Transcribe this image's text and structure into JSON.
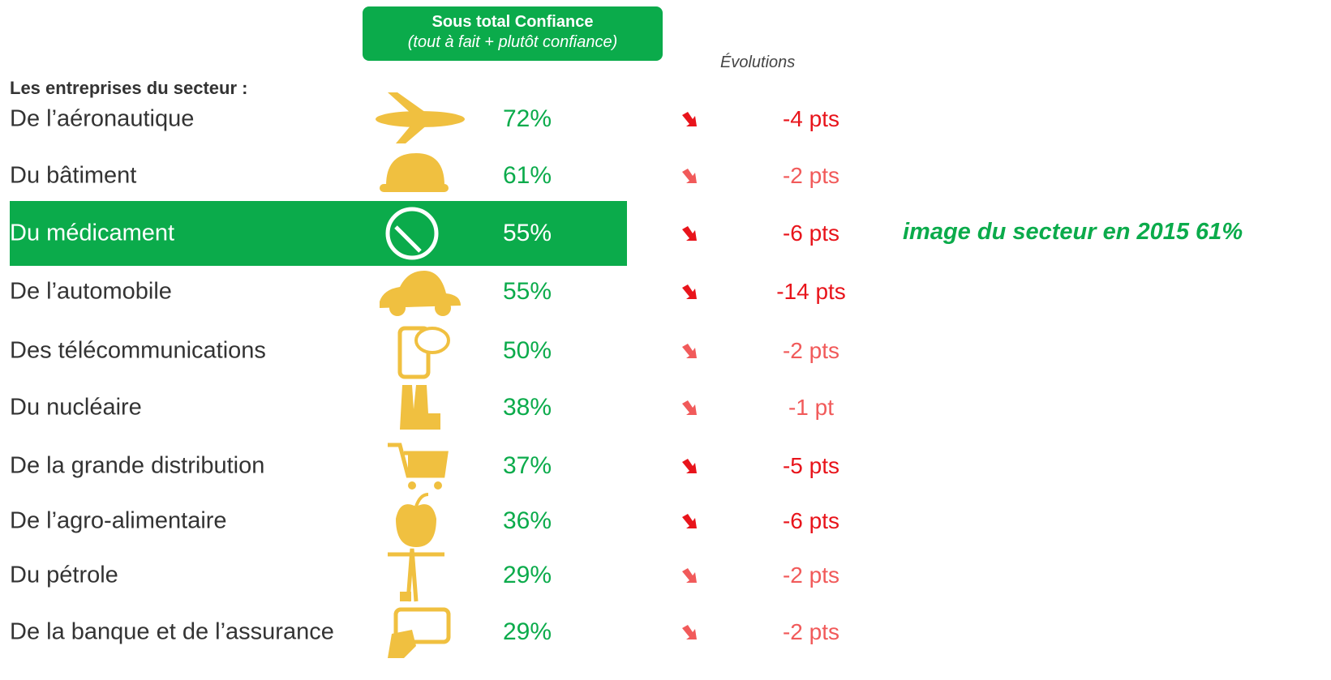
{
  "header": {
    "row_title": "Les entreprises du secteur :",
    "confidence_title": "Sous total Confiance",
    "confidence_subtitle": "(tout à fait + plutôt confiance)",
    "evolution_title": "Évolutions"
  },
  "highlighted_row": 2,
  "annotation": "image du secteur en 2015 61%",
  "rows": [
    {
      "label": "De l’aéronautique",
      "confidence": "72%",
      "evolution": "-4 pts",
      "color": "#e8141b"
    },
    {
      "label": "Du bâtiment",
      "confidence": "61%",
      "evolution": "-2 pts",
      "color": "#f15a5a"
    },
    {
      "label": "Du médicament",
      "confidence": "55%",
      "evolution": "-6 pts",
      "color": "#e8141b"
    },
    {
      "label": "De l’automobile",
      "confidence": "55%",
      "evolution": "-14 pts",
      "color": "#e8141b"
    },
    {
      "label": "Des télécommunications",
      "confidence": "50%",
      "evolution": "-2 pts",
      "color": "#f15a5a"
    },
    {
      "label": "Du nucléaire",
      "confidence": "38%",
      "evolution": "-1 pt",
      "color": "#f15a5a"
    },
    {
      "label": "De la grande distribution",
      "confidence": "37%",
      "evolution": "-5 pts",
      "color": "#e8141b"
    },
    {
      "label": "De l’agro-alimentaire",
      "confidence": "36%",
      "evolution": "-6 pts",
      "color": "#e8141b"
    },
    {
      "label": "Du pétrole",
      "confidence": "29%",
      "evolution": "-2 pts",
      "color": "#f15a5a"
    },
    {
      "label": "De la banque et de l’assurance",
      "confidence": "29%",
      "evolution": "-2 pts",
      "color": "#f15a5a"
    }
  ]
}
